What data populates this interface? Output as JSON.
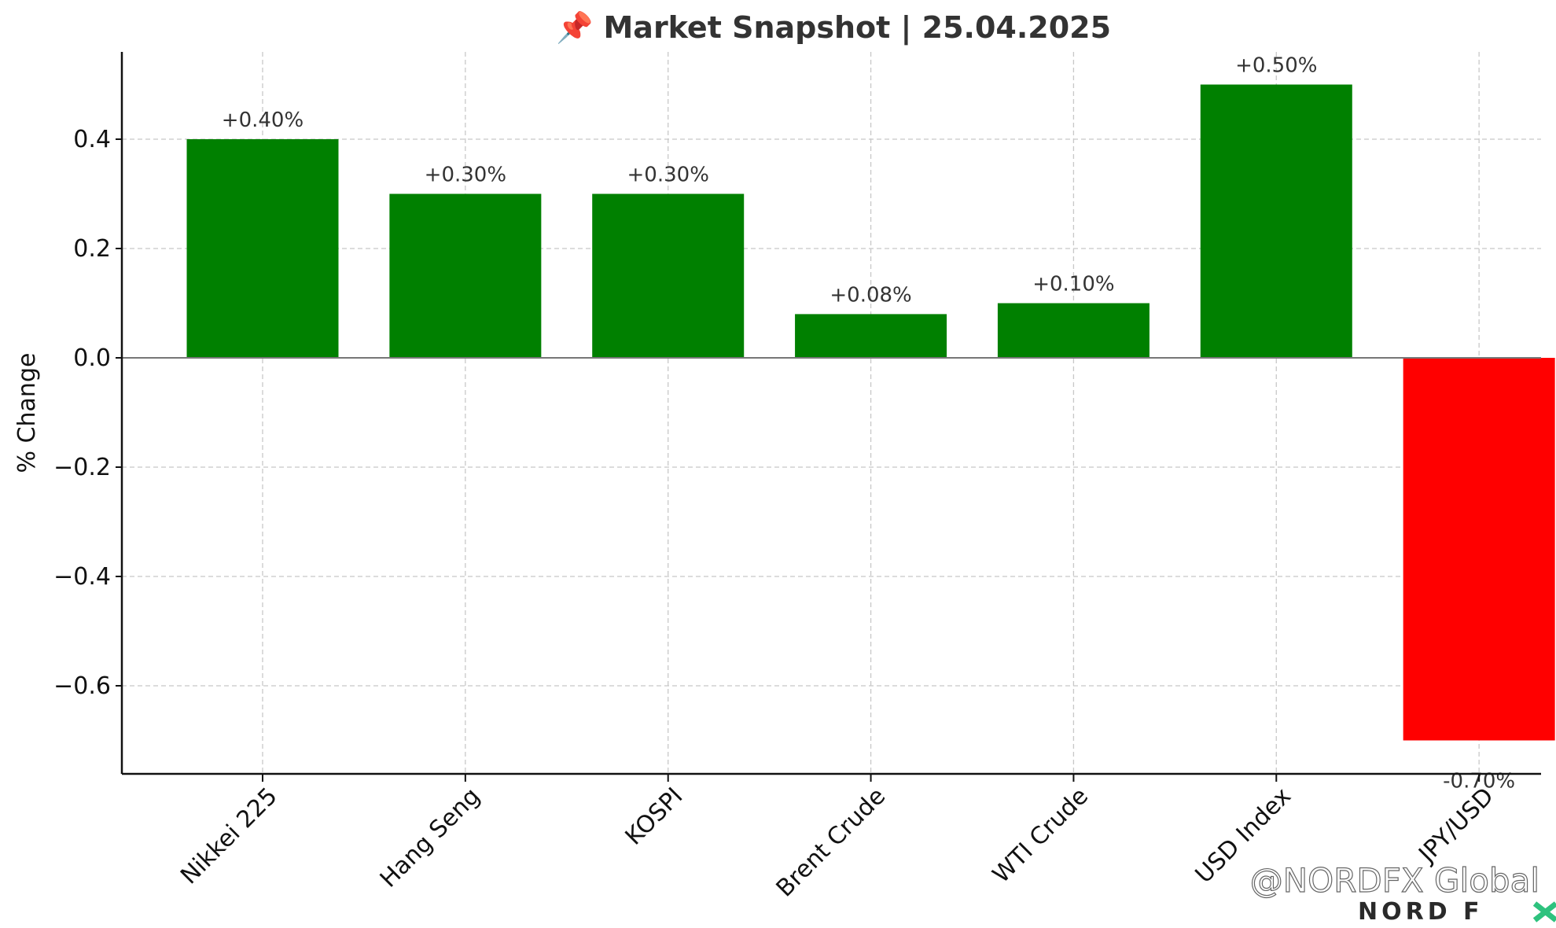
{
  "chart_data": {
    "type": "bar",
    "title": "📌 Market Snapshot | 25.04.2025",
    "xlabel": "",
    "ylabel": "% Change",
    "categories": [
      "Nikkei 225",
      "Hang Seng",
      "KOSPI",
      "Brent Crude",
      "WTI Crude",
      "USD Index",
      "JPY/USD"
    ],
    "values": [
      0.4,
      0.3,
      0.3,
      0.08,
      0.1,
      0.5,
      -0.7
    ],
    "data_labels": [
      "+0.40%",
      "+0.30%",
      "+0.30%",
      "+0.08%",
      "+0.10%",
      "+0.50%",
      "-0.70%"
    ],
    "bar_colors": [
      "#008000",
      "#008000",
      "#008000",
      "#008000",
      "#008000",
      "#008000",
      "#ff0000"
    ],
    "ylim": [
      -0.76,
      0.56
    ],
    "yticks": [
      -0.6,
      -0.4,
      -0.2,
      0.0,
      0.2,
      0.4
    ],
    "ytick_labels": [
      "−0.6",
      "−0.4",
      "−0.2",
      "0.0",
      "0.2",
      "0.4"
    ],
    "grid": true
  },
  "watermark": {
    "handle": "@NORDFX Global",
    "brand_text": "NORD F",
    "brand_accent_color": "#2ec27e"
  }
}
